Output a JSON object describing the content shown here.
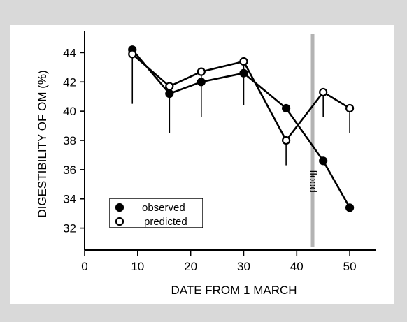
{
  "chart_data": {
    "type": "line",
    "xlabel": "DATE FROM 1 MARCH",
    "ylabel": "DIGESTIBILITY OF OM (%)",
    "xlim": [
      0,
      55
    ],
    "ylim": [
      30.5,
      45.5
    ],
    "x_ticks": [
      0,
      10,
      20,
      30,
      40,
      50
    ],
    "y_ticks": [
      32,
      34,
      36,
      38,
      40,
      42,
      44
    ],
    "grid": false,
    "legend_position": "bottom-left",
    "series": [
      {
        "name": "observed",
        "marker": "filled-circle",
        "color": "#000000",
        "x": [
          9,
          16,
          22,
          30,
          38,
          45,
          50
        ],
        "y": [
          44.2,
          41.2,
          42.0,
          42.6,
          40.2,
          36.6,
          33.4
        ]
      },
      {
        "name": "predicted",
        "marker": "open-circle",
        "color": "#000000",
        "x": [
          9,
          16,
          22,
          30,
          38,
          45,
          50
        ],
        "y": [
          43.9,
          41.7,
          42.7,
          43.4,
          38.0,
          41.3,
          40.2
        ],
        "error_low": [
          40.5,
          38.5,
          39.6,
          40.4,
          36.3,
          39.6,
          38.5
        ]
      }
    ],
    "annotations": [
      {
        "label": "flood",
        "x": 43,
        "style": "vertical-band",
        "color": "#b3b3b3"
      }
    ]
  }
}
